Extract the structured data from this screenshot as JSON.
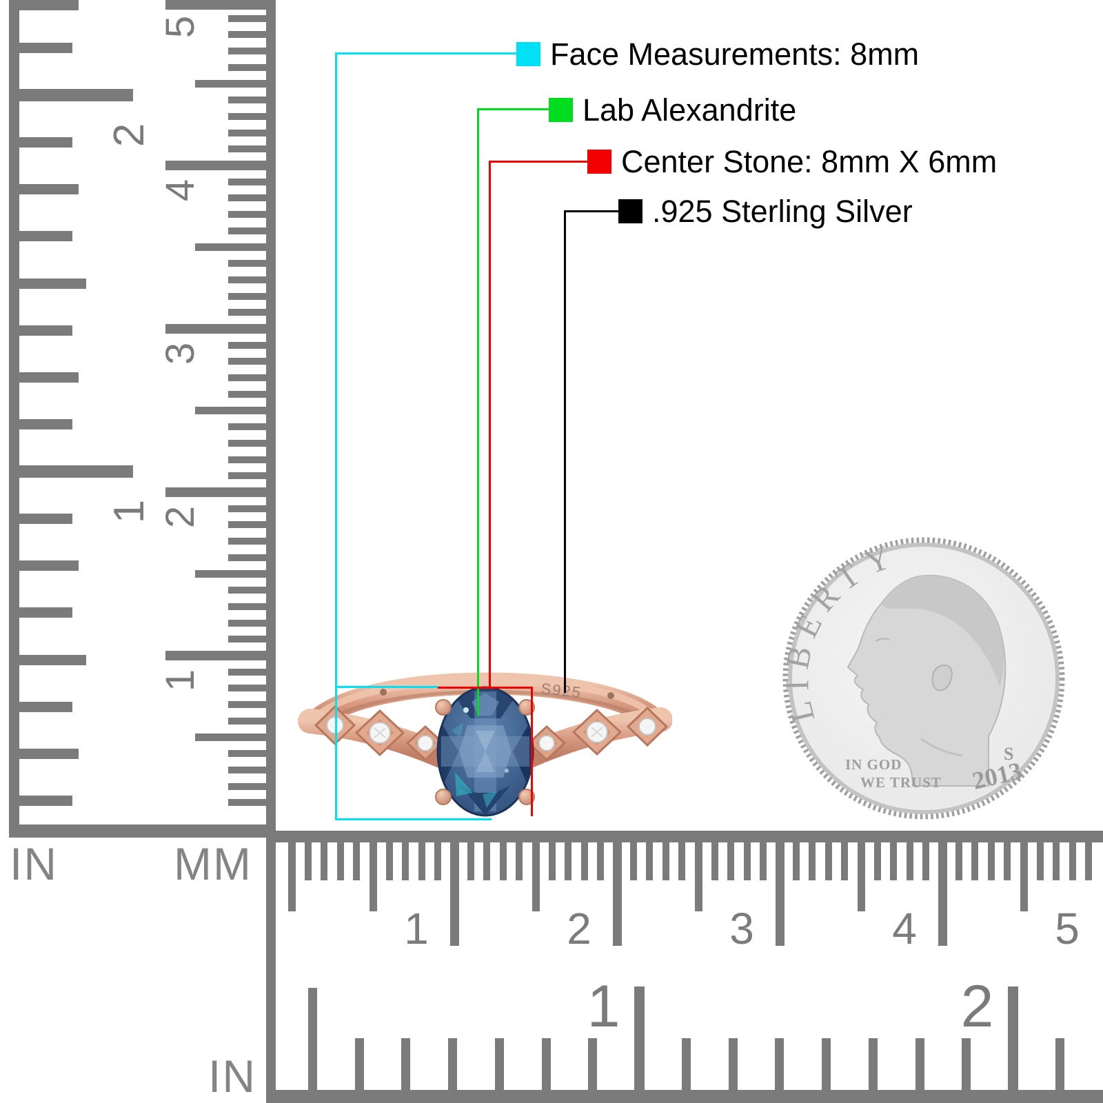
{
  "legend": {
    "items": [
      {
        "name": "face-measurements",
        "color": "#00e1f6",
        "label": "Face Measurements: 8mm"
      },
      {
        "name": "stone-type",
        "color": "#00dc1e",
        "label": "Lab Alexandrite"
      },
      {
        "name": "center-stone",
        "color": "#f20000",
        "label": "Center Stone: 8mm X 6mm"
      },
      {
        "name": "metal",
        "color": "#000000",
        "label": ".925 Sterling Silver"
      }
    ]
  },
  "rulers": {
    "left": {
      "inch_numbers": [
        "2",
        "1"
      ],
      "mm_numbers": [
        "5",
        "4",
        "3",
        "2",
        "1"
      ],
      "inch_unit": "IN",
      "mm_unit": "MM"
    },
    "bottom": {
      "mm_numbers": [
        "1",
        "2",
        "3",
        "4",
        "5"
      ],
      "inch_numbers": [
        "1",
        "2"
      ],
      "inch_unit": "IN"
    }
  },
  "ring": {
    "stamp": "S925"
  },
  "coin": {
    "legend_text": "LIBERTY",
    "motto_line1": "IN GOD",
    "motto_line2": "WE TRUST",
    "mint_mark": "S",
    "date": "2013"
  },
  "colors": {
    "ruler_gray": "#7b7b7b",
    "rose_gold": "#d89b82",
    "stone_blue": "#2f4f7e",
    "coin_silver": "#e3e3e3"
  }
}
